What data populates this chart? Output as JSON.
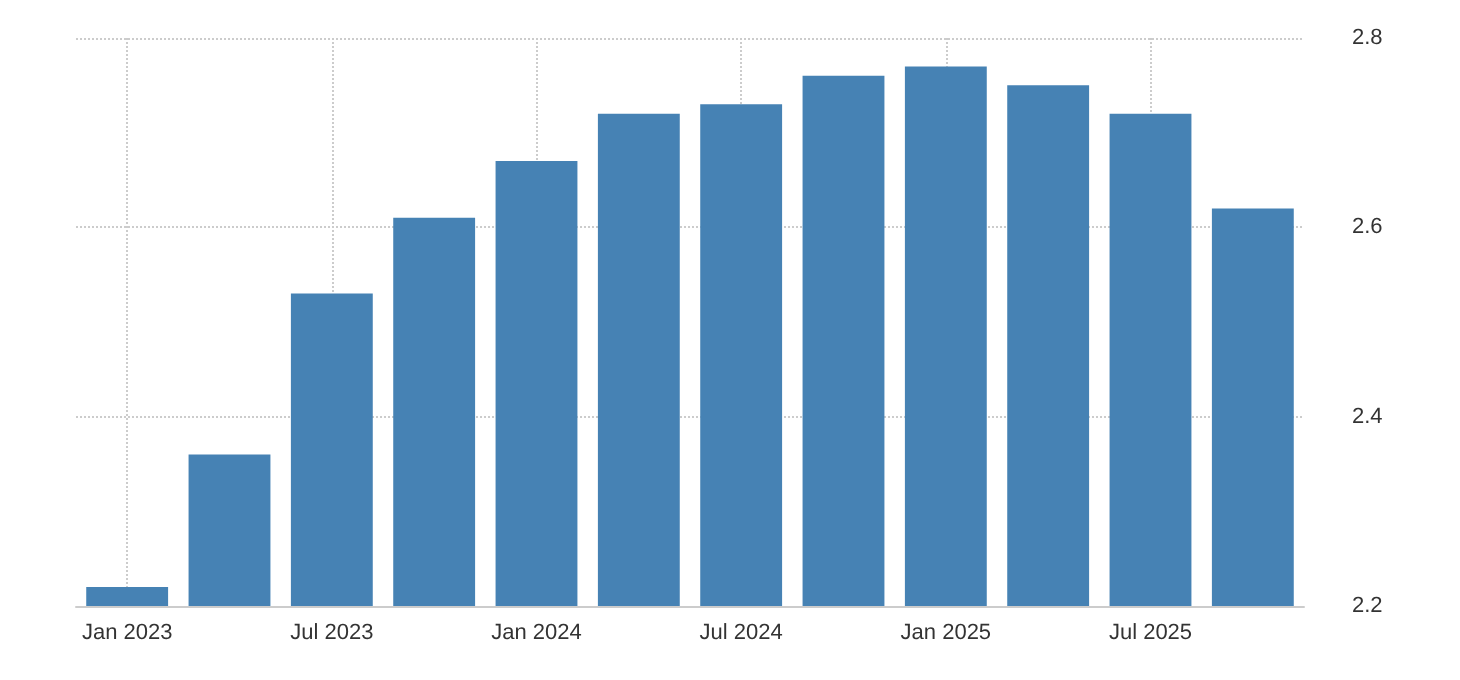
{
  "chart_data": {
    "type": "bar",
    "categories": [
      "Jan 2023",
      null,
      "Jul 2023",
      null,
      "Jan 2024",
      null,
      "Jul 2024",
      null,
      "Jan 2025",
      null,
      "Jul 2025",
      null
    ],
    "values": [
      2.22,
      2.36,
      2.53,
      2.61,
      2.67,
      2.72,
      2.73,
      2.76,
      2.77,
      2.75,
      2.72,
      2.62
    ],
    "color": "#4682b4",
    "ylim": [
      2.2,
      2.8
    ],
    "yticks": [
      2.2,
      2.4,
      2.6,
      2.8
    ],
    "grid": true
  }
}
